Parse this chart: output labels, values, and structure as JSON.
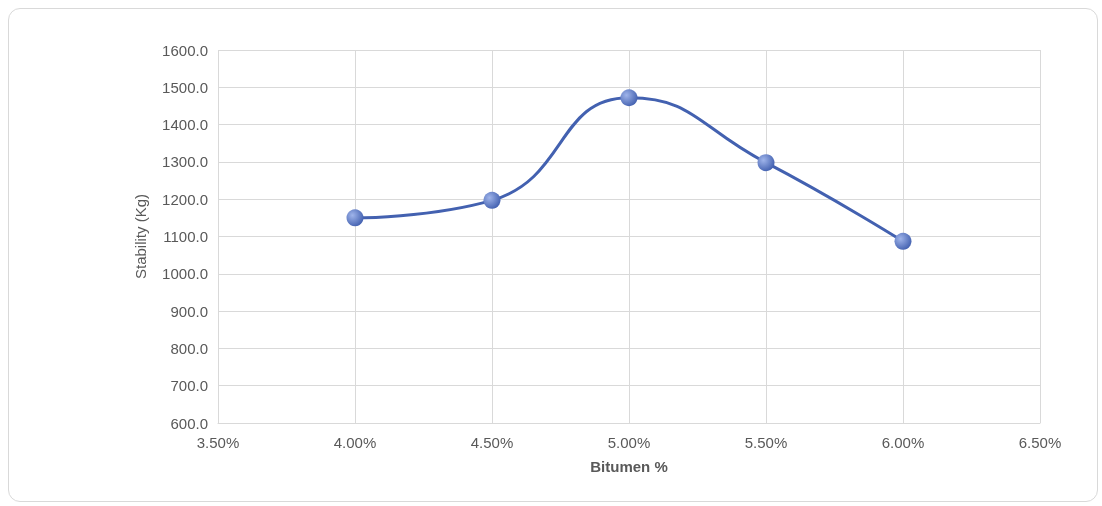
{
  "chart_data": {
    "type": "line",
    "xlabel": "Bitumen %",
    "ylabel": "Stability (Kg)",
    "x": [
      4.0,
      4.5,
      5.0,
      5.5,
      6.0
    ],
    "series": [
      {
        "color": "#4361b0",
        "values": [
          1150,
          1197,
          1472,
          1298,
          1087
        ]
      }
    ],
    "xlim": [
      3.5,
      6.5
    ],
    "xticks": [
      {
        "value": 3.5,
        "label": "3.50%"
      },
      {
        "value": 4.0,
        "label": "4.00%"
      },
      {
        "value": 4.5,
        "label": "4.50%"
      },
      {
        "value": 5.0,
        "label": "5.00%"
      },
      {
        "value": 5.5,
        "label": "5.50%"
      },
      {
        "value": 6.0,
        "label": "6.00%"
      },
      {
        "value": 6.5,
        "label": "6.50%"
      }
    ],
    "ylim": [
      600,
      1600
    ],
    "yticks": [
      {
        "value": 600,
        "label": "600.0"
      },
      {
        "value": 700,
        "label": "700.0"
      },
      {
        "value": 800,
        "label": "800.0"
      },
      {
        "value": 900,
        "label": "900.0"
      },
      {
        "value": 1000,
        "label": "1000.0"
      },
      {
        "value": 1100,
        "label": "1100.0"
      },
      {
        "value": 1200,
        "label": "1200.0"
      },
      {
        "value": 1300,
        "label": "1300.0"
      },
      {
        "value": 1400,
        "label": "1400.0"
      },
      {
        "value": 1500,
        "label": "1500.0"
      },
      {
        "value": 1600,
        "label": "1600.0"
      }
    ],
    "grid": true,
    "marker": "circle",
    "line_style": "solid"
  }
}
